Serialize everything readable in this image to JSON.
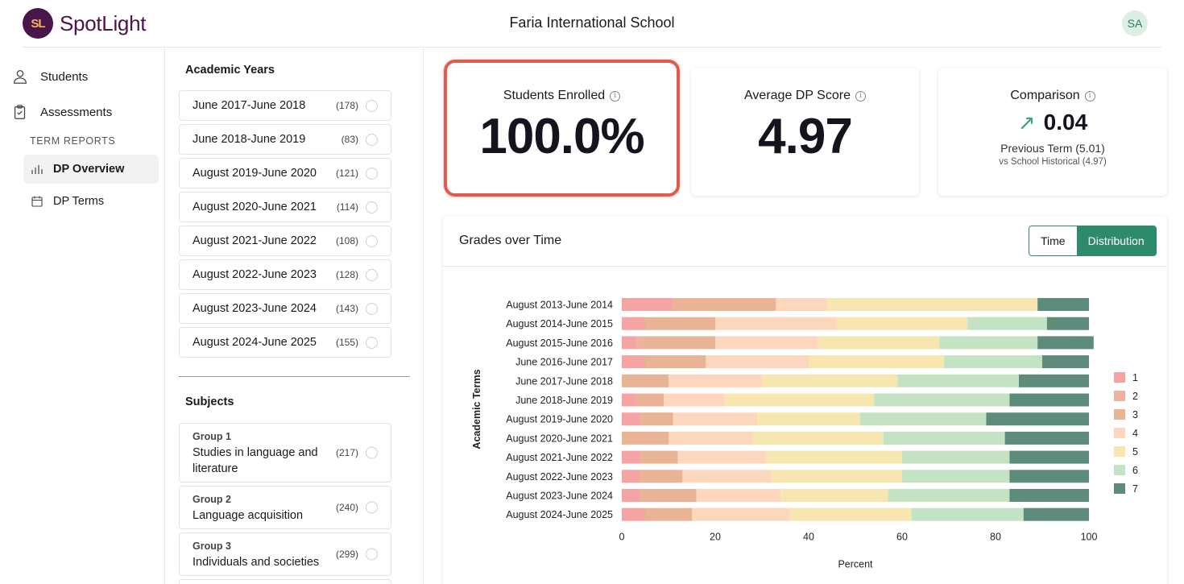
{
  "header": {
    "logo_mark": "SL",
    "app_name": "SpotLight",
    "school": "Faria International School",
    "avatar": "SA"
  },
  "nav": {
    "students": "Students",
    "assessments": "Assessments",
    "section": "TERM REPORTS",
    "dp_overview": "DP Overview",
    "dp_terms": "DP Terms"
  },
  "filters": {
    "years_title": "Academic Years",
    "years": [
      {
        "label": "June 2017-June 2018",
        "count": "(178)"
      },
      {
        "label": "June 2018-June 2019",
        "count": "(83)"
      },
      {
        "label": "August 2019-June 2020",
        "count": "(121)"
      },
      {
        "label": "August 2020-June 2021",
        "count": "(114)"
      },
      {
        "label": "August 2021-June 2022",
        "count": "(108)"
      },
      {
        "label": "August 2022-June 2023",
        "count": "(128)"
      },
      {
        "label": "August 2023-June 2024",
        "count": "(143)"
      },
      {
        "label": "August 2024-June 2025",
        "count": "(155)"
      }
    ],
    "subjects_title": "Subjects",
    "groups": [
      {
        "group": "Group 1",
        "name": "Studies in language and literature",
        "count": "(217)"
      },
      {
        "group": "Group 2",
        "name": "Language acquisition",
        "count": "(240)"
      },
      {
        "group": "Group 3",
        "name": "Individuals and societies",
        "count": "(299)"
      }
    ]
  },
  "cards": {
    "enrolled": {
      "title": "Students Enrolled",
      "value": "100.0%"
    },
    "avg": {
      "title": "Average DP Score",
      "value": "4.97"
    },
    "comparison": {
      "title": "Comparison",
      "arrow": "↗",
      "value": "0.04",
      "previous": "Previous Term (5.01)",
      "historical": "vs School Historical (4.97)"
    }
  },
  "panel": {
    "title": "Grades over Time",
    "toggle_time": "Time",
    "toggle_distribution": "Distribution"
  },
  "colors": {
    "accent": "#2e8b6a",
    "highlight": "#e15a4d",
    "grades": [
      "#f5a3a3",
      "#f0b19e",
      "#e9b496",
      "#fdd6be",
      "#f7e6b0",
      "#c4e2c4",
      "#5d8c7b"
    ]
  },
  "chart_data": {
    "type": "bar",
    "orientation": "horizontal",
    "stacked": true,
    "xlabel": "Percent",
    "ylabel": "Academic Terms",
    "xlim": [
      0,
      100
    ],
    "xticks": [
      0,
      20,
      40,
      60,
      80,
      100
    ],
    "legend_position": "right",
    "categories": [
      "August 2013-June 2014",
      "August 2014-June 2015",
      "August 2015-June 2016",
      "June 2016-June 2017",
      "June 2017-June 2018",
      "June 2018-June 2019",
      "August 2019-June 2020",
      "August 2020-June 2021",
      "August 2021-June 2022",
      "August 2022-June 2023",
      "August 2023-June 2024",
      "August 2024-June 2025"
    ],
    "series": [
      {
        "name": "1",
        "values": [
          11,
          5,
          3,
          5,
          0,
          3,
          4,
          0,
          4,
          4,
          4,
          5
        ]
      },
      {
        "name": "2",
        "values": [
          0,
          0,
          2,
          0,
          0,
          0,
          0,
          0,
          0,
          0,
          0,
          0
        ]
      },
      {
        "name": "3",
        "values": [
          22,
          15,
          15,
          13,
          10,
          6,
          7,
          10,
          8,
          9,
          12,
          10
        ]
      },
      {
        "name": "4",
        "values": [
          11,
          26,
          22,
          22,
          20,
          13,
          18,
          18,
          19,
          19,
          18,
          21
        ]
      },
      {
        "name": "5",
        "values": [
          45,
          28,
          26,
          29,
          29,
          32,
          22,
          28,
          29,
          28,
          23,
          26
        ]
      },
      {
        "name": "6",
        "values": [
          0,
          17,
          21,
          21,
          26,
          29,
          27,
          26,
          23,
          23,
          26,
          24
        ]
      },
      {
        "name": "7",
        "values": [
          11,
          9,
          12,
          10,
          15,
          17,
          22,
          18,
          17,
          17,
          17,
          14
        ]
      }
    ]
  }
}
